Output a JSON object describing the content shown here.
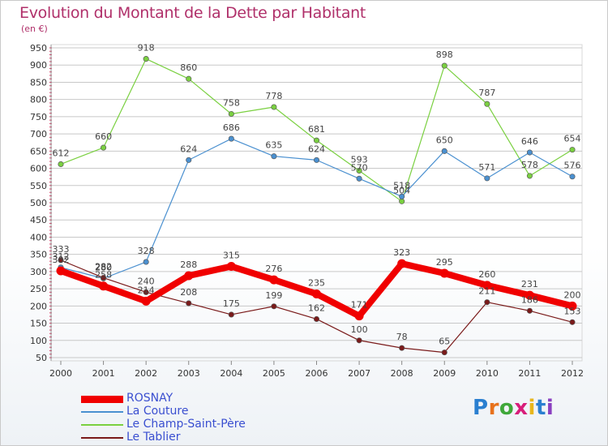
{
  "title": "Evolution du Montant de la Dette par Habitant",
  "subtitle": "(en €)",
  "brand": "Proxiti",
  "colors": {
    "title": "#b0306a",
    "grid": "#c8c8c8",
    "axis_tick": "#d0305a"
  },
  "chart_data": {
    "type": "line",
    "title": "Evolution du Montant de la Dette par Habitant",
    "subtitle": "(en €)",
    "xlabel": "",
    "ylabel": "",
    "x": [
      "2000",
      "2001",
      "2002",
      "2003",
      "2004",
      "2005",
      "2006",
      "2007",
      "2008",
      "2009",
      "2010",
      "2011",
      "2012"
    ],
    "ylim": [
      50,
      950
    ],
    "yticks": [
      50,
      100,
      150,
      200,
      250,
      300,
      350,
      400,
      450,
      500,
      550,
      600,
      650,
      700,
      750,
      800,
      850,
      900,
      950
    ],
    "grid": true,
    "legend_position": "bottom-left",
    "series": [
      {
        "name": "ROSNAY",
        "color": "#f00000",
        "values": [
          302,
          258,
          214,
          288,
          315,
          276,
          235,
          171,
          323,
          295,
          260,
          231,
          200
        ]
      },
      {
        "name": "La Couture",
        "color": "#4a90d0",
        "values": [
          312,
          280,
          328,
          624,
          686,
          635,
          624,
          570,
          518,
          650,
          571,
          646,
          576
        ]
      },
      {
        "name": "Le Champ-Saint-Père",
        "color": "#7ad040",
        "values": [
          612,
          660,
          918,
          860,
          758,
          778,
          681,
          593,
          504,
          898,
          787,
          578,
          654
        ]
      },
      {
        "name": "Le Tablier",
        "color": "#7a1a1a",
        "values": [
          333,
          282,
          240,
          208,
          175,
          199,
          162,
          100,
          78,
          65,
          211,
          186,
          153
        ]
      }
    ]
  }
}
